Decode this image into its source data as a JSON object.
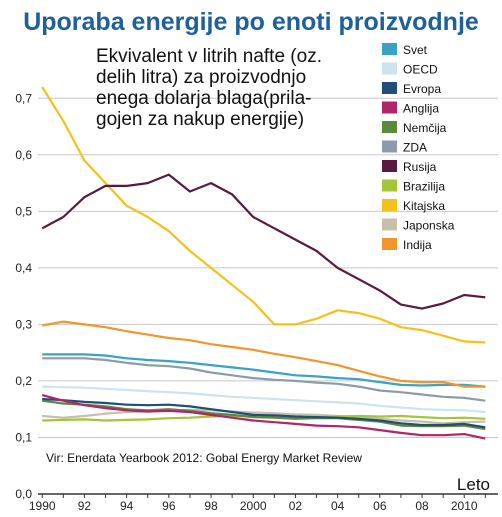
{
  "chart_data": {
    "type": "line",
    "title": "Uporaba energije po enoti proizvodnje",
    "subtitle": [
      "Ekvivalent v litrih nafte (oz.",
      "delih litra) za proizvodnjo",
      "enega dolarja blaga(prila-",
      "gojen za nakup energije)"
    ],
    "xlabel": "Leto",
    "ylabel": "",
    "source": "Vir: Enerdata Yearbook 2012: Gobal Energy Market Review",
    "x": [
      1990,
      1991,
      1992,
      1993,
      1994,
      1995,
      1996,
      1997,
      1998,
      1999,
      2000,
      2001,
      2002,
      2003,
      2004,
      2005,
      2006,
      2007,
      2008,
      2009,
      2010,
      2011
    ],
    "xticks": [
      "1990",
      "92",
      "94",
      "96",
      "98",
      "2000",
      "02",
      "04",
      "06",
      "08",
      "2010"
    ],
    "xtick_values": [
      1990,
      1992,
      1994,
      1996,
      1998,
      2000,
      2002,
      2004,
      2006,
      2008,
      2010
    ],
    "yticks": [
      "0,0",
      "0,1",
      "0,2",
      "0,3",
      "0,4",
      "0,5",
      "0,6",
      "0,7"
    ],
    "ytick_values": [
      0,
      0.1,
      0.2,
      0.3,
      0.4,
      0.5,
      0.6,
      0.7
    ],
    "xlim": [
      1989.8,
      2011.6
    ],
    "ylim": [
      0,
      0.75
    ],
    "grid": "horizontal",
    "legend_position": "top-right",
    "series": [
      {
        "name": "Svet",
        "color": "#3aa1c7",
        "values": [
          0.247,
          0.247,
          0.247,
          0.245,
          0.24,
          0.237,
          0.235,
          0.232,
          0.228,
          0.224,
          0.22,
          0.215,
          0.21,
          0.208,
          0.205,
          0.203,
          0.198,
          0.193,
          0.192,
          0.193,
          0.193,
          0.19
        ]
      },
      {
        "name": "OECD",
        "color": "#cfe2f0",
        "values": [
          0.19,
          0.189,
          0.188,
          0.186,
          0.184,
          0.182,
          0.18,
          0.178,
          0.175,
          0.172,
          0.17,
          0.168,
          0.166,
          0.164,
          0.162,
          0.16,
          0.156,
          0.153,
          0.15,
          0.149,
          0.148,
          0.145
        ]
      },
      {
        "name": "Evropa",
        "color": "#1f4e79",
        "values": [
          0.168,
          0.166,
          0.163,
          0.161,
          0.158,
          0.157,
          0.158,
          0.155,
          0.15,
          0.145,
          0.14,
          0.139,
          0.137,
          0.136,
          0.135,
          0.133,
          0.13,
          0.125,
          0.122,
          0.122,
          0.124,
          0.118
        ]
      },
      {
        "name": "Anglija",
        "color": "#b0256a",
        "values": [
          0.175,
          0.165,
          0.157,
          0.152,
          0.148,
          0.146,
          0.147,
          0.145,
          0.14,
          0.135,
          0.13,
          0.127,
          0.124,
          0.121,
          0.12,
          0.118,
          0.113,
          0.108,
          0.104,
          0.104,
          0.106,
          0.098
        ]
      },
      {
        "name": "Nemčija",
        "color": "#5b8a3a",
        "values": [
          0.165,
          0.16,
          0.158,
          0.155,
          0.15,
          0.148,
          0.15,
          0.147,
          0.143,
          0.14,
          0.136,
          0.135,
          0.133,
          0.134,
          0.134,
          0.131,
          0.128,
          0.121,
          0.12,
          0.12,
          0.121,
          0.115
        ]
      },
      {
        "name": "ZDA",
        "color": "#8c9bab",
        "values": [
          0.24,
          0.24,
          0.24,
          0.237,
          0.232,
          0.228,
          0.226,
          0.222,
          0.215,
          0.21,
          0.205,
          0.202,
          0.2,
          0.197,
          0.195,
          0.19,
          0.183,
          0.18,
          0.176,
          0.172,
          0.17,
          0.165
        ]
      },
      {
        "name": "Rusija",
        "color": "#5a1a3d",
        "values": [
          0.47,
          0.49,
          0.525,
          0.545,
          0.545,
          0.55,
          0.565,
          0.535,
          0.55,
          0.53,
          0.49,
          0.47,
          0.45,
          0.43,
          0.4,
          0.38,
          0.36,
          0.335,
          0.328,
          0.337,
          0.352,
          0.348
        ]
      },
      {
        "name": "Brazilija",
        "color": "#a5c43a",
        "values": [
          0.13,
          0.131,
          0.132,
          0.13,
          0.131,
          0.132,
          0.134,
          0.135,
          0.137,
          0.138,
          0.138,
          0.137,
          0.136,
          0.136,
          0.137,
          0.138,
          0.137,
          0.138,
          0.136,
          0.134,
          0.135,
          0.133
        ]
      },
      {
        "name": "Kitajska",
        "color": "#f2c21b",
        "values": [
          0.72,
          0.66,
          0.59,
          0.55,
          0.51,
          0.49,
          0.465,
          0.43,
          0.4,
          0.37,
          0.34,
          0.3,
          0.3,
          0.31,
          0.325,
          0.32,
          0.31,
          0.295,
          0.29,
          0.28,
          0.27,
          0.268
        ]
      },
      {
        "name": "Japonska",
        "color": "#c8bfa8",
        "values": [
          0.138,
          0.135,
          0.138,
          0.142,
          0.145,
          0.146,
          0.148,
          0.149,
          0.148,
          0.146,
          0.144,
          0.143,
          0.141,
          0.14,
          0.138,
          0.136,
          0.133,
          0.13,
          0.128,
          0.125,
          0.127,
          0.128
        ]
      },
      {
        "name": "Indija",
        "color": "#f0962c",
        "values": [
          0.298,
          0.305,
          0.3,
          0.295,
          0.288,
          0.282,
          0.276,
          0.272,
          0.265,
          0.26,
          0.255,
          0.248,
          0.242,
          0.235,
          0.228,
          0.218,
          0.208,
          0.2,
          0.198,
          0.198,
          0.19,
          0.19
        ]
      }
    ]
  }
}
